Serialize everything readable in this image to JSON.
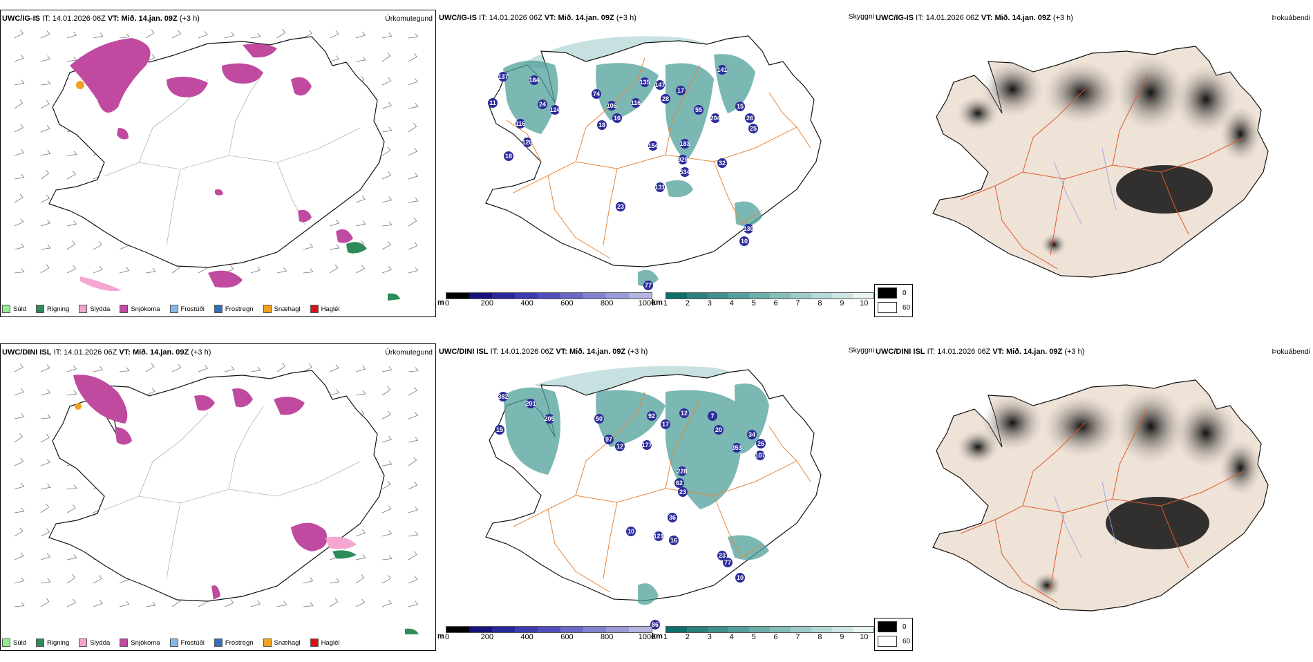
{
  "rows": [
    {
      "model": "UWC/IG-IS",
      "it_label": "IT:",
      "it_value": "14.01.2026 06Z",
      "vt_label": "VT:",
      "vt_value": "Mið. 14.jan. 09Z",
      "lead": "(+3 h)",
      "titles": {
        "precip": "Úrkomutegund",
        "visibility": "Skyggni",
        "cloud": "Þokuábendi"
      },
      "ceiling_labels": [
        "137",
        "184",
        "24",
        "124",
        "11",
        "116",
        "18",
        "120",
        "74",
        "16",
        "106",
        "18",
        "135",
        "116",
        "28",
        "147",
        "17",
        "141",
        "55",
        "204",
        "15",
        "26",
        "25",
        "154",
        "183",
        "929",
        "534",
        "32",
        "131",
        "23",
        "130",
        "10",
        "77"
      ]
    },
    {
      "model": "UWC/DINI ISL",
      "it_label": "IT:",
      "it_value": "14.01.2026 06Z",
      "vt_label": "VT:",
      "vt_value": "Mið. 14.jan. 09Z",
      "lead": "(+3 h)",
      "titles": {
        "precip": "Úrkomutegund",
        "visibility": "Skyggni",
        "cloud": "Þokuábendi"
      },
      "ceiling_labels": [
        "382",
        "201",
        "205",
        "15",
        "50",
        "92",
        "17",
        "12",
        "7",
        "97",
        "12",
        "177",
        "20",
        "353",
        "34",
        "26",
        "107",
        "62",
        "228",
        "23",
        "10",
        "36",
        "121",
        "16",
        "23",
        "77",
        "10",
        "86"
      ]
    }
  ],
  "precip_legend": [
    {
      "label": "Súld",
      "color": "#90ee90"
    },
    {
      "label": "Rigning",
      "color": "#2e8b57"
    },
    {
      "label": "Slydda",
      "color": "#f4a6d0"
    },
    {
      "label": "Snjókoma",
      "color": "#c04aa0"
    },
    {
      "label": "Frostúði",
      "color": "#87b9e8"
    },
    {
      "label": "Frostregn",
      "color": "#2f6fc0"
    },
    {
      "label": "Snæhagl",
      "color": "#f2a020"
    },
    {
      "label": "Haglél",
      "color": "#e01010"
    }
  ],
  "ceiling_bar": {
    "unit": "m",
    "ticks": [
      "0",
      "200",
      "400",
      "600",
      "800",
      "1000"
    ],
    "colors": [
      "#000000",
      "#14147a",
      "#28289a",
      "#3c3cb0",
      "#5050bc",
      "#6a6ac6",
      "#8282d0",
      "#9a9ad8",
      "#b4b4e2"
    ]
  },
  "visibility_bar": {
    "unit": "km",
    "ticks": [
      "1",
      "2",
      "3",
      "4",
      "5",
      "6",
      "7",
      "8",
      "9",
      "10"
    ],
    "colors": [
      "#0e6f6a",
      "#2a807c",
      "#3f8f8b",
      "#55a09c",
      "#6caeaa",
      "#84bdba",
      "#9ccbc8",
      "#b4d9d7",
      "#cde6e4",
      "#e8f3f2"
    ]
  },
  "cloud_legend": [
    {
      "label": "0",
      "color": "#000000"
    },
    {
      "label": "60",
      "color": "#ffffff"
    }
  ]
}
